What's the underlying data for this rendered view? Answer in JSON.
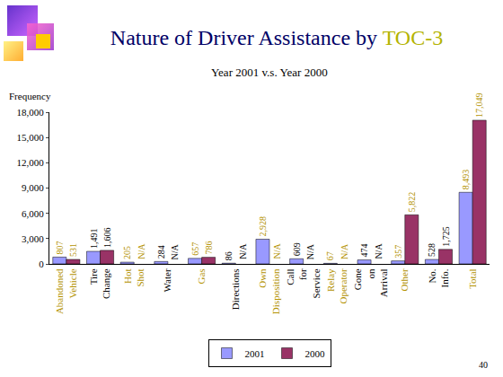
{
  "chart_data": {
    "type": "bar",
    "title": "Nature of Driver Assistance by TOC-3",
    "subtitle": "Year 2001 v.s. Year 2000",
    "y_axis_label": "Frequency",
    "footer": "40",
    "categories": [
      "Abandoned Vehicle",
      "Tire Change",
      "Hot Shot",
      "Water",
      "Gas",
      "Directions",
      "Own Disposition",
      "Call for Service",
      "Relay Operator",
      "Gone on Arrival",
      "Other",
      "No. Info.",
      "Total"
    ],
    "series": [
      {
        "name": "2001",
        "color": "#9999ff",
        "values": [
          807,
          1491,
          205,
          284,
          657,
          86,
          2928,
          609,
          67,
          474,
          357,
          528,
          8493
        ],
        "value_labels": [
          "807",
          "1,491",
          "205",
          "284",
          "657",
          "86",
          "2,928",
          "609",
          "67",
          "474",
          "357",
          "528",
          "8,493"
        ]
      },
      {
        "name": "2000",
        "color": "#993366",
        "values": [
          531,
          1606,
          null,
          null,
          786,
          null,
          null,
          null,
          null,
          null,
          5822,
          1725,
          17049
        ],
        "value_labels": [
          "531",
          "1,606",
          "N/A",
          "N/A",
          "786",
          "N/A",
          "N/A",
          "N/A",
          "N/A",
          "N/A",
          "5,822",
          "1,725",
          "17,049"
        ]
      }
    ],
    "ylim": [
      0,
      18000
    ],
    "yticks": [
      0,
      {
        "value": 3000,
        "label": "3,000"
      },
      {
        "value": 6000,
        "label": "6,000"
      },
      {
        "value": 9000,
        "label": "9,000"
      },
      {
        "value": 12000,
        "label": "12,000"
      },
      {
        "value": 15000,
        "label": "15,000"
      },
      {
        "value": 18000,
        "label": "18,000"
      }
    ],
    "grid": false,
    "data_labels": true,
    "legend": "bottom"
  }
}
